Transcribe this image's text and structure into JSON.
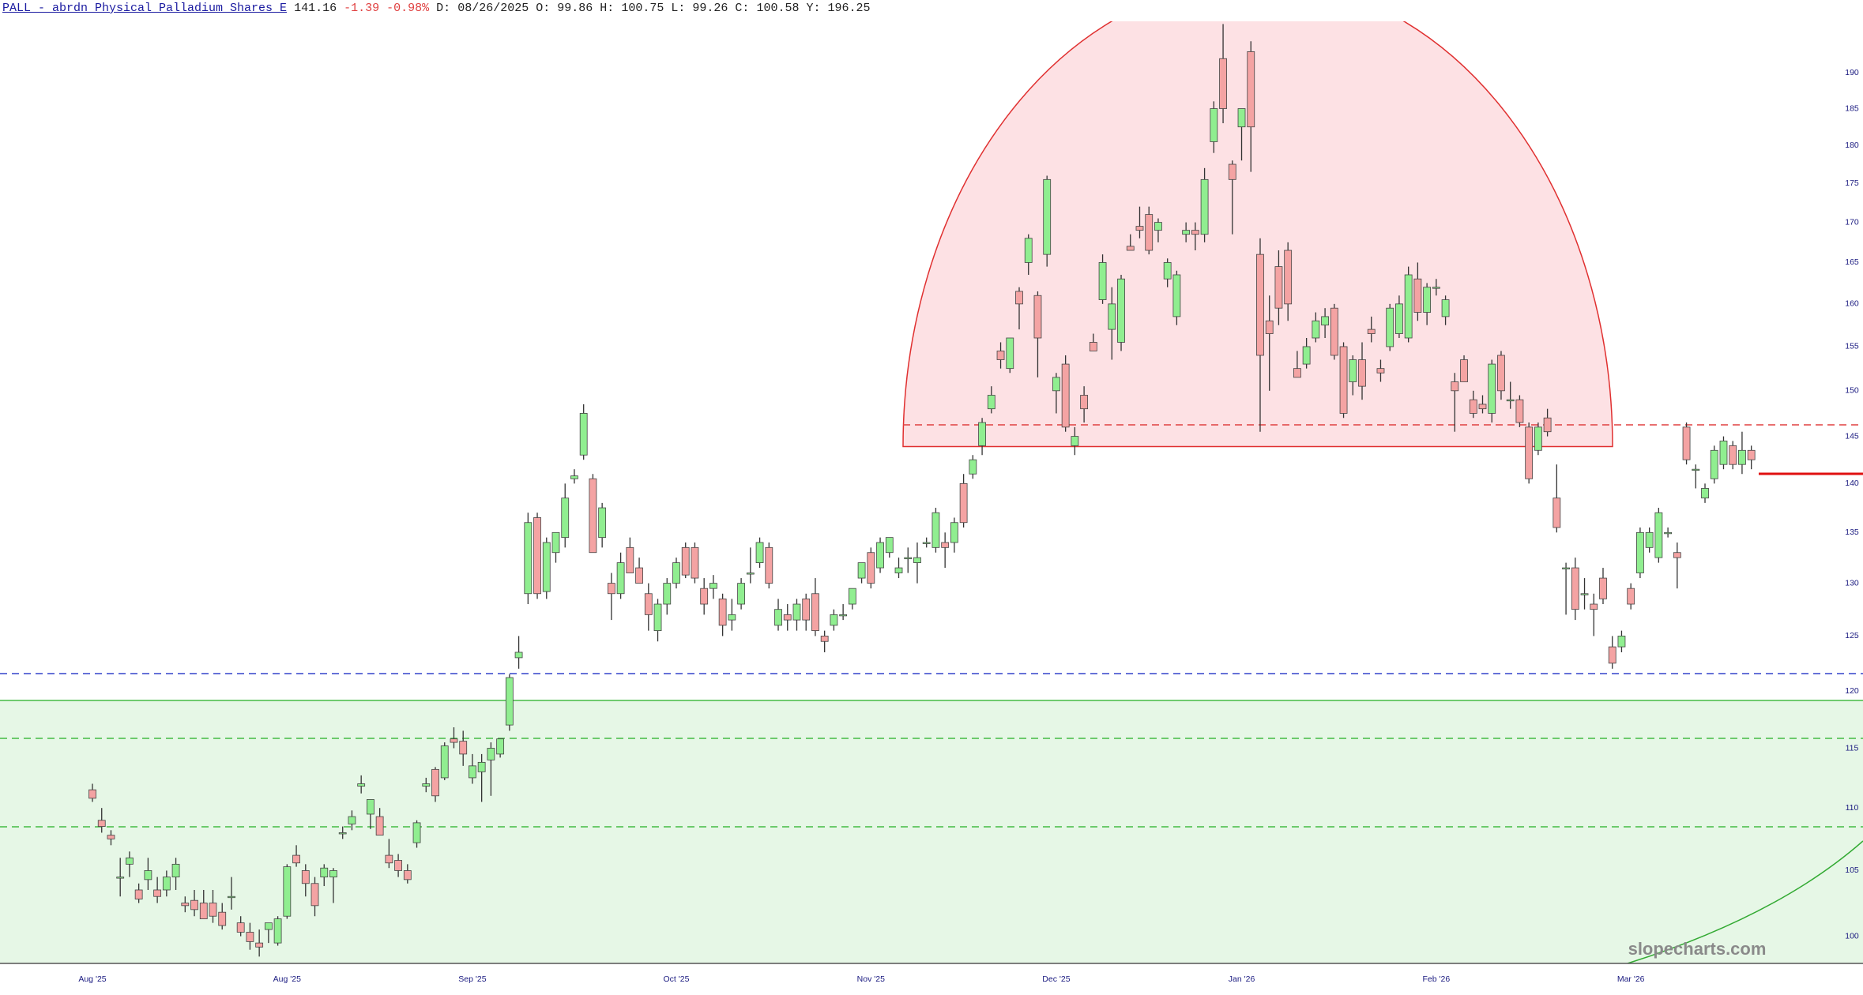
{
  "header": {
    "symbol": "PALL - abrdn Physical Palladium Shares E",
    "last": "141.16",
    "change": "-1.39 -0.98%",
    "fields": [
      {
        "label": "D:",
        "value": "08/26/2025"
      },
      {
        "label": "O:",
        "value": "99.86"
      },
      {
        "label": "H:",
        "value": "100.75"
      },
      {
        "label": "L:",
        "value": "99.26"
      },
      {
        "label": "C:",
        "value": "100.58"
      },
      {
        "label": "Y:",
        "value": "196.25"
      }
    ]
  },
  "chart_data": {
    "type": "candlestick",
    "log": true,
    "watermark": "slopecharts.com",
    "up_color": "#90ee90",
    "down_color": "#f4a3a3",
    "outline": "#444444",
    "ylim": [
      98,
      197.4
    ],
    "yticks": [
      100,
      105,
      110,
      115,
      120,
      125,
      130,
      135,
      140,
      145,
      150,
      155,
      160,
      165,
      170,
      175,
      180,
      185,
      190
    ],
    "categories": [
      "Aug '25",
      null,
      null,
      null,
      null,
      null,
      null,
      null,
      null,
      null,
      null,
      null,
      null,
      null,
      null,
      null,
      null,
      null,
      null,
      null,
      null,
      "Aug '25",
      null,
      null,
      null,
      null,
      null,
      null,
      null,
      null,
      null,
      null,
      null,
      null,
      null,
      null,
      null,
      null,
      null,
      null,
      null,
      "Sep '25",
      null,
      null,
      null,
      null,
      null,
      null,
      null,
      null,
      null,
      null,
      null,
      null,
      null,
      null,
      null,
      null,
      null,
      null,
      null,
      null,
      null,
      "Oct '25",
      null,
      null,
      null,
      null,
      null,
      null,
      null,
      null,
      null,
      null,
      null,
      null,
      null,
      null,
      null,
      null,
      null,
      null,
      null,
      null,
      "Nov '25",
      null,
      null,
      null,
      null,
      null,
      null,
      null,
      null,
      null,
      null,
      null,
      null,
      null,
      null,
      null,
      null,
      null,
      null,
      null,
      "Dec '25",
      null,
      null,
      null,
      null,
      null,
      null,
      null,
      null,
      null,
      null,
      null,
      null,
      null,
      null,
      null,
      null,
      null,
      null,
      null,
      "Jan '26",
      null,
      null,
      null,
      null,
      null,
      null,
      null,
      null,
      null,
      null,
      null,
      null,
      null,
      null,
      null,
      null,
      null,
      null,
      null,
      null,
      "Feb '26",
      null,
      null,
      null,
      null,
      null,
      null,
      null,
      null,
      null,
      null,
      null,
      null,
      null,
      null,
      null,
      null,
      null,
      null,
      null,
      null,
      "Mar '26",
      null,
      null,
      null,
      null,
      null,
      null,
      null,
      null,
      null,
      null,
      null,
      null,
      null
    ],
    "candles": [
      [
        111.5,
        112,
        110.5,
        110.8
      ],
      [
        109,
        110,
        108,
        108.5
      ],
      [
        107.8,
        108.2,
        107,
        107.5
      ],
      [
        104.5,
        106,
        103,
        104.5
      ],
      [
        105.5,
        106.5,
        104.5,
        106
      ],
      [
        103.5,
        104,
        102.5,
        102.8
      ],
      [
        104.3,
        106,
        103.5,
        105
      ],
      [
        103.5,
        104.5,
        102.5,
        103
      ],
      [
        103.5,
        105,
        103,
        104.5
      ],
      [
        104.5,
        106,
        103.5,
        105.5
      ],
      [
        102.5,
        103,
        101.8,
        102.3
      ],
      [
        102.7,
        103.5,
        101.5,
        102
      ],
      [
        102.5,
        103.5,
        101.5,
        101.3
      ],
      [
        102.5,
        103.5,
        101,
        101.5
      ],
      [
        101.8,
        102.5,
        100.5,
        100.8
      ],
      [
        103,
        104.5,
        102,
        103
      ],
      [
        101,
        101.5,
        100,
        100.3
      ],
      [
        100.3,
        101,
        99,
        99.6
      ],
      [
        99.5,
        100.5,
        98.5,
        99.2
      ],
      [
        100.5,
        101,
        99.5,
        101
      ],
      [
        99.5,
        101.5,
        99.3,
        101.3
      ],
      [
        101.5,
        105.5,
        101.3,
        105.3
      ],
      [
        106.2,
        107,
        105.3,
        105.6
      ],
      [
        105,
        105.5,
        103,
        104
      ],
      [
        104,
        104.5,
        101.5,
        102.3
      ],
      [
        104.5,
        105.5,
        103.8,
        105.2
      ],
      [
        104.5,
        105.2,
        102.5,
        105
      ],
      [
        108,
        108.5,
        107.5,
        108
      ],
      [
        108.7,
        109.8,
        108.2,
        109.3
      ],
      [
        111.8,
        112.7,
        111.2,
        112
      ],
      [
        109.5,
        110.5,
        108.3,
        110.7
      ],
      [
        109.3,
        110,
        107.8,
        107.8
      ],
      [
        106.2,
        107.5,
        105.2,
        105.6
      ],
      [
        105.8,
        106.3,
        104.5,
        105
      ],
      [
        105,
        105.5,
        104,
        104.3
      ],
      [
        107.2,
        109,
        106.8,
        108.8
      ],
      [
        111.8,
        112.5,
        111.3,
        112
      ],
      [
        113.2,
        113.4,
        110.5,
        111
      ],
      [
        112.5,
        115.5,
        112.3,
        115.2
      ],
      [
        115.8,
        116.8,
        115,
        115.5
      ],
      [
        115.6,
        116.5,
        113.5,
        114.5
      ],
      [
        112.5,
        114.5,
        112,
        113.5
      ],
      [
        113,
        114.5,
        110.5,
        113.8
      ],
      [
        114,
        115.5,
        111,
        115
      ],
      [
        114.5,
        115.8,
        114.2,
        115.8
      ],
      [
        117,
        121.5,
        116.5,
        121.2
      ],
      [
        123,
        125,
        122,
        123.5
      ],
      [
        129,
        137,
        128,
        136
      ],
      [
        136.5,
        137,
        128.5,
        129
      ],
      [
        129.2,
        134.5,
        128.5,
        134
      ],
      [
        133,
        135,
        132,
        135
      ],
      [
        134.5,
        140,
        133.5,
        138.5
      ],
      [
        140.5,
        141.5,
        140,
        140.8
      ],
      [
        143,
        148.5,
        142.5,
        147.5
      ],
      [
        140.5,
        141,
        133,
        133
      ],
      [
        134.5,
        138,
        133.5,
        137.5
      ],
      [
        130,
        131,
        126.5,
        129
      ],
      [
        129,
        133,
        128.5,
        132
      ],
      [
        133.5,
        134.5,
        131,
        131
      ],
      [
        131.5,
        132.5,
        130,
        130
      ],
      [
        129,
        130,
        125.5,
        127
      ],
      [
        125.5,
        128.5,
        124.5,
        128
      ],
      [
        128,
        130.5,
        127,
        130
      ],
      [
        130,
        132.5,
        129.5,
        132
      ],
      [
        133.5,
        134,
        130.5,
        130.8
      ],
      [
        133.5,
        134,
        130,
        130.5
      ],
      [
        129.5,
        130.5,
        127,
        128
      ],
      [
        129.5,
        130.8,
        128.5,
        130
      ],
      [
        128.5,
        129,
        125,
        126
      ],
      [
        126.5,
        128.5,
        125.5,
        127
      ],
      [
        128,
        130.5,
        127.5,
        130
      ],
      [
        131,
        133.5,
        130,
        131
      ],
      [
        132,
        134.5,
        131.5,
        134
      ],
      [
        133.5,
        134,
        129.5,
        130
      ],
      [
        126,
        128.5,
        125.5,
        127.5
      ],
      [
        127,
        128,
        125.5,
        126.5
      ],
      [
        126.5,
        128.5,
        125.5,
        128
      ],
      [
        128.5,
        129,
        125.5,
        126.5
      ],
      [
        129,
        130.5,
        125,
        125.5
      ],
      [
        125,
        125.5,
        123.5,
        124.5
      ],
      [
        126,
        127.5,
        125.5,
        127
      ],
      [
        127,
        128,
        126.5,
        127
      ],
      [
        128,
        129.5,
        127.5,
        129.5
      ],
      [
        130.5,
        132,
        130,
        132
      ],
      [
        133,
        133.5,
        129.5,
        130
      ],
      [
        131.5,
        134.5,
        131,
        134
      ],
      [
        133,
        134.5,
        132.5,
        134.5
      ],
      [
        131,
        132.5,
        130.5,
        131.5
      ],
      [
        132.5,
        133.5,
        131,
        132.5
      ],
      [
        132,
        134,
        130,
        132.5
      ],
      [
        134,
        134.5,
        133.5,
        134
      ],
      [
        133.5,
        137.5,
        133,
        137
      ],
      [
        134,
        135,
        131.5,
        133.5
      ],
      [
        134,
        136.5,
        133,
        136
      ],
      [
        140,
        141,
        135.5,
        136
      ],
      [
        141,
        143,
        140.5,
        142.5
      ],
      [
        144,
        147,
        143,
        146.5
      ],
      [
        148,
        150.5,
        147.5,
        149.5
      ],
      [
        154.5,
        155.5,
        152.5,
        153.5
      ],
      [
        152.5,
        156,
        152,
        156
      ],
      [
        161.5,
        162,
        157,
        160
      ],
      [
        165,
        168.5,
        163.5,
        168
      ],
      [
        161,
        161.5,
        151.5,
        156
      ],
      [
        166,
        176,
        164.5,
        175.5
      ],
      [
        150,
        152,
        147.5,
        151.5
      ],
      [
        153,
        154,
        145.5,
        146
      ],
      [
        144,
        146,
        143,
        145
      ],
      [
        149.5,
        150.5,
        146.5,
        148
      ],
      [
        155.5,
        156.5,
        154.5,
        154.5
      ],
      [
        160.5,
        166,
        160,
        165
      ],
      [
        157,
        162,
        153.5,
        160
      ],
      [
        155.5,
        163.5,
        154.5,
        163
      ],
      [
        167,
        168.5,
        166.5,
        166.5
      ],
      [
        169.5,
        172,
        168,
        169
      ],
      [
        171,
        172,
        166,
        166.5
      ],
      [
        169,
        170.5,
        167.5,
        170
      ],
      [
        163,
        165.5,
        162,
        165
      ],
      [
        158.5,
        164,
        157.5,
        163.5
      ],
      [
        168.5,
        170,
        167.5,
        169
      ],
      [
        169,
        170,
        166.5,
        168.5
      ],
      [
        168.5,
        177,
        167.5,
        175.5
      ],
      [
        180.5,
        186,
        179,
        185
      ],
      [
        192,
        197,
        183,
        185
      ],
      [
        177.5,
        178,
        168.5,
        175.5
      ],
      [
        182.5,
        185,
        178,
        185
      ],
      [
        193,
        194.5,
        176.5,
        182.5
      ],
      [
        166,
        168,
        145.5,
        154
      ],
      [
        158,
        161,
        150,
        156.5
      ],
      [
        164.5,
        166.5,
        157.5,
        159.5
      ],
      [
        166.5,
        167.5,
        158,
        160
      ],
      [
        152.5,
        154.5,
        151.5,
        151.5
      ],
      [
        153,
        156,
        152.5,
        155
      ],
      [
        156,
        159,
        155.5,
        158
      ],
      [
        157.5,
        159.5,
        156,
        158.5
      ],
      [
        159.5,
        160,
        153.5,
        154
      ],
      [
        155,
        155.5,
        147,
        147.5
      ],
      [
        151,
        154,
        149.5,
        153.5
      ],
      [
        153.5,
        155.5,
        149,
        150.5
      ],
      [
        157,
        158.5,
        155.5,
        156.5
      ],
      [
        152.5,
        153.5,
        151,
        152
      ],
      [
        155,
        160,
        154.5,
        159.5
      ],
      [
        156.5,
        161,
        156,
        160
      ],
      [
        156,
        164.5,
        155.5,
        163.5
      ],
      [
        163,
        165,
        158,
        159
      ],
      [
        159,
        162.5,
        157.5,
        162
      ],
      [
        162,
        163,
        161,
        162
      ],
      [
        158.5,
        161,
        157.5,
        160.5
      ],
      [
        151,
        152,
        145.5,
        150
      ],
      [
        153.5,
        154,
        151,
        151
      ],
      [
        149,
        150,
        147,
        147.5
      ],
      [
        148.5,
        149.5,
        147.5,
        148
      ],
      [
        147.5,
        153.5,
        146.5,
        153
      ],
      [
        154,
        154.5,
        149,
        150
      ],
      [
        149,
        151,
        148,
        149
      ],
      [
        149,
        149.5,
        146,
        146.5
      ],
      [
        146,
        146.5,
        140,
        140.5
      ],
      [
        143.5,
        146.5,
        143,
        146
      ],
      [
        147,
        148,
        145,
        145.5
      ],
      [
        138.5,
        142,
        135,
        135.5
      ],
      [
        131.5,
        132,
        127,
        131.5
      ],
      [
        131.5,
        132.5,
        126.5,
        127.5
      ],
      [
        129,
        130.5,
        127.5,
        129
      ],
      [
        128,
        129,
        125,
        127.5
      ],
      [
        130.5,
        131.5,
        128,
        128.5
      ],
      [
        124,
        125,
        122,
        122.5
      ],
      [
        124,
        125.5,
        123.5,
        125
      ],
      [
        129.5,
        130,
        127.5,
        128
      ],
      [
        131,
        135.5,
        130.5,
        135
      ],
      [
        133.5,
        135.5,
        133,
        135
      ],
      [
        132.5,
        137.5,
        132,
        137
      ],
      [
        135,
        135.5,
        134.5,
        135
      ],
      [
        133,
        134,
        129.5,
        132.5
      ],
      [
        146,
        146.5,
        142,
        142.5
      ],
      [
        141.5,
        142,
        139.5,
        141.5
      ],
      [
        138.5,
        140,
        138,
        139.5
      ],
      [
        140.5,
        144,
        140,
        143.5
      ],
      [
        142,
        145,
        141.5,
        144.5
      ],
      [
        144,
        144.5,
        141.5,
        142
      ],
      [
        142,
        145.5,
        141,
        143.5
      ],
      [
        143.5,
        144,
        141.5,
        142.5
      ]
    ]
  }
}
